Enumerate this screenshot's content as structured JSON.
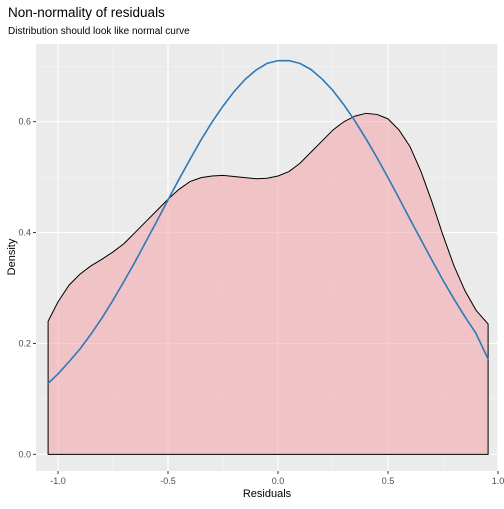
{
  "chart_data": {
    "type": "area",
    "title": "Non-normality of residuals",
    "subtitle": "Distribution should look like normal curve",
    "xlabel": "Residuals",
    "ylabel": "Density",
    "xlim": [
      -1.1,
      1.0
    ],
    "ylim": [
      -0.03,
      0.74
    ],
    "x_ticks": [
      -1.0,
      -0.5,
      0.0,
      0.5,
      1.0
    ],
    "x_tick_labels": [
      "-1.0",
      "-0.5",
      "0.0",
      "0.5",
      "1.0"
    ],
    "y_ticks": [
      0.0,
      0.2,
      0.4,
      0.6
    ],
    "y_tick_labels": [
      "0.0",
      "0.2",
      "0.4",
      "0.6"
    ],
    "grid": true,
    "series": [
      {
        "kind": "density-area",
        "fill": "#F4A3A8",
        "fill_opacity": 0.55,
        "stroke": "#000000",
        "points": [
          [
            -1.045,
            0.0
          ],
          [
            -1.045,
            0.24
          ],
          [
            -1.0,
            0.275
          ],
          [
            -0.95,
            0.305
          ],
          [
            -0.9,
            0.325
          ],
          [
            -0.85,
            0.34
          ],
          [
            -0.8,
            0.352
          ],
          [
            -0.75,
            0.365
          ],
          [
            -0.7,
            0.38
          ],
          [
            -0.65,
            0.4
          ],
          [
            -0.6,
            0.42
          ],
          [
            -0.55,
            0.44
          ],
          [
            -0.5,
            0.46
          ],
          [
            -0.45,
            0.478
          ],
          [
            -0.4,
            0.492
          ],
          [
            -0.35,
            0.499
          ],
          [
            -0.3,
            0.502
          ],
          [
            -0.25,
            0.503
          ],
          [
            -0.2,
            0.501
          ],
          [
            -0.15,
            0.499
          ],
          [
            -0.1,
            0.497
          ],
          [
            -0.05,
            0.498
          ],
          [
            0.0,
            0.502
          ],
          [
            0.05,
            0.51
          ],
          [
            0.1,
            0.525
          ],
          [
            0.15,
            0.545
          ],
          [
            0.2,
            0.565
          ],
          [
            0.25,
            0.585
          ],
          [
            0.3,
            0.6
          ],
          [
            0.35,
            0.61
          ],
          [
            0.4,
            0.615
          ],
          [
            0.45,
            0.613
          ],
          [
            0.5,
            0.605
          ],
          [
            0.55,
            0.585
          ],
          [
            0.6,
            0.555
          ],
          [
            0.65,
            0.51
          ],
          [
            0.7,
            0.455
          ],
          [
            0.75,
            0.395
          ],
          [
            0.8,
            0.34
          ],
          [
            0.85,
            0.295
          ],
          [
            0.9,
            0.26
          ],
          [
            0.955,
            0.235
          ],
          [
            0.955,
            0.0
          ]
        ]
      },
      {
        "kind": "normal-curve",
        "stroke": "#2E7AB8",
        "points": [
          [
            -1.045,
            0.128
          ],
          [
            -1.0,
            0.145
          ],
          [
            -0.95,
            0.167
          ],
          [
            -0.9,
            0.19
          ],
          [
            -0.85,
            0.217
          ],
          [
            -0.8,
            0.246
          ],
          [
            -0.75,
            0.278
          ],
          [
            -0.7,
            0.312
          ],
          [
            -0.65,
            0.347
          ],
          [
            -0.6,
            0.384
          ],
          [
            -0.55,
            0.421
          ],
          [
            -0.5,
            0.459
          ],
          [
            -0.45,
            0.496
          ],
          [
            -0.4,
            0.532
          ],
          [
            -0.35,
            0.567
          ],
          [
            -0.3,
            0.599
          ],
          [
            -0.25,
            0.628
          ],
          [
            -0.2,
            0.654
          ],
          [
            -0.15,
            0.676
          ],
          [
            -0.1,
            0.693
          ],
          [
            -0.05,
            0.705
          ],
          [
            0.0,
            0.71
          ],
          [
            0.05,
            0.71
          ],
          [
            0.1,
            0.705
          ],
          [
            0.15,
            0.694
          ],
          [
            0.2,
            0.677
          ],
          [
            0.25,
            0.656
          ],
          [
            0.3,
            0.63
          ],
          [
            0.35,
            0.601
          ],
          [
            0.4,
            0.569
          ],
          [
            0.45,
            0.535
          ],
          [
            0.5,
            0.499
          ],
          [
            0.55,
            0.462
          ],
          [
            0.6,
            0.424
          ],
          [
            0.65,
            0.387
          ],
          [
            0.7,
            0.35
          ],
          [
            0.75,
            0.314
          ],
          [
            0.8,
            0.28
          ],
          [
            0.85,
            0.248
          ],
          [
            0.9,
            0.218
          ],
          [
            0.955,
            0.172
          ]
        ]
      }
    ]
  }
}
